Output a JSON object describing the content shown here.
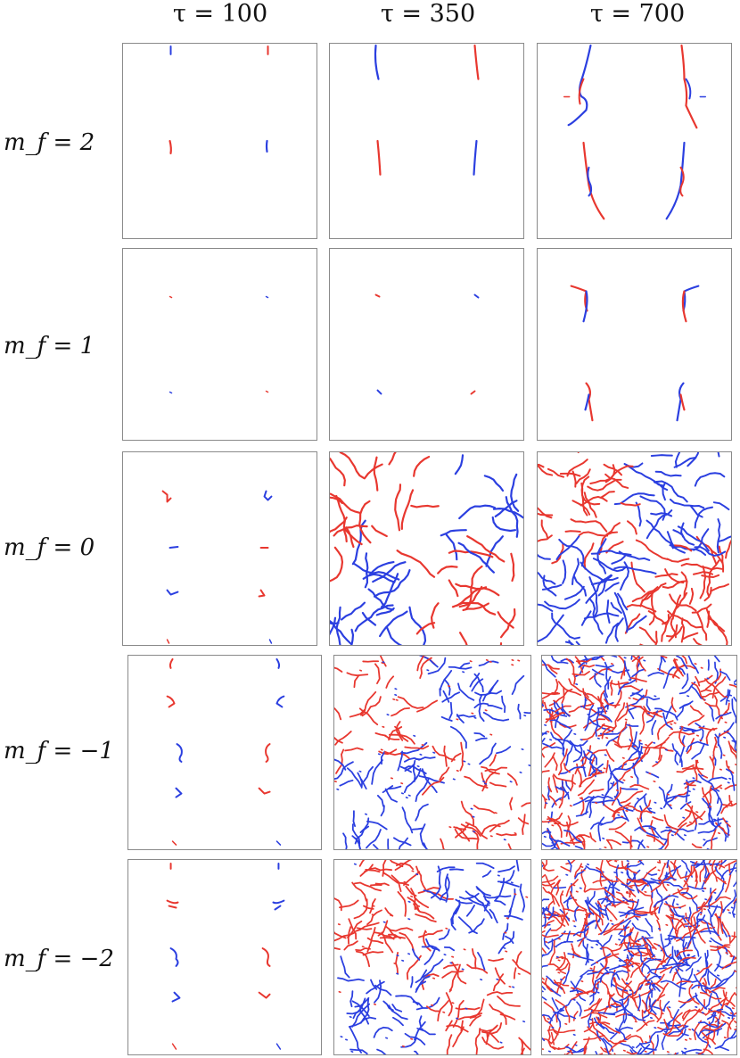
{
  "column_headers": [
    "τ = 100",
    "τ = 350",
    "τ = 700"
  ],
  "row_labels": [
    "m_f = 2",
    "m_f = 1",
    "m_f = 0",
    "m_f = −1",
    "m_f = −2"
  ],
  "colors": {
    "red": "#e8372f",
    "blue": "#2b3fe0",
    "frame": "#8a8a8a"
  }
}
